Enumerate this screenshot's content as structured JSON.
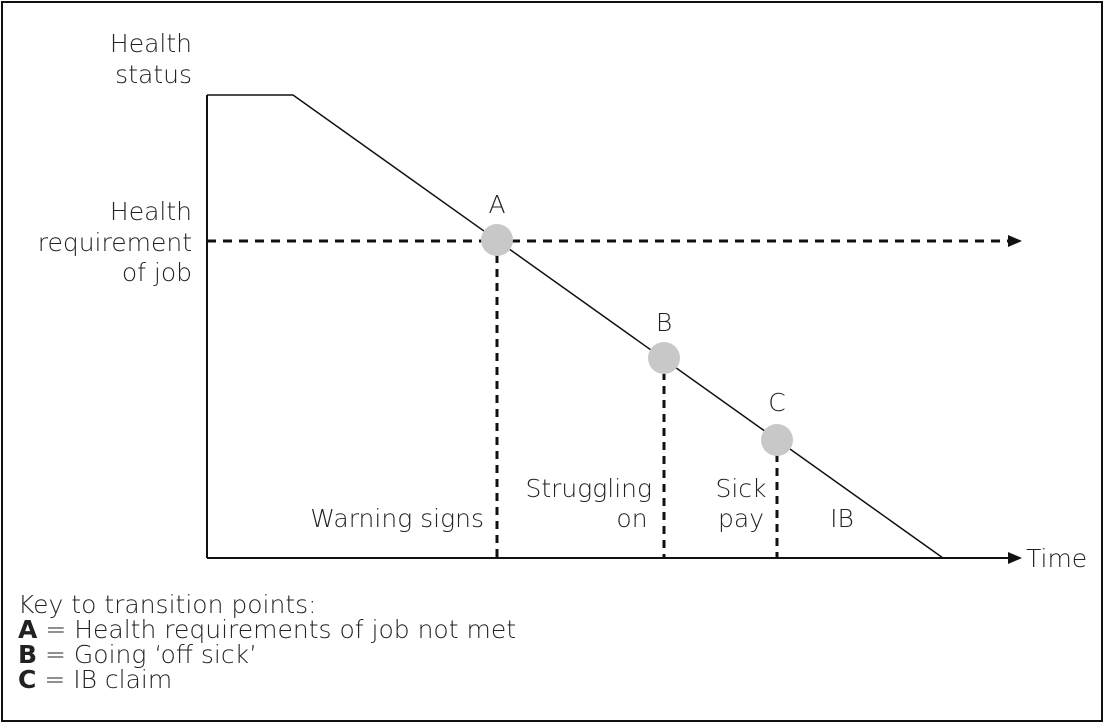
{
  "y_axis_label": [
    "Health",
    "status"
  ],
  "x_axis_label": "Time",
  "threshold_label": [
    "Health",
    "requirement",
    "of job"
  ],
  "points": [
    {
      "label": "A"
    },
    {
      "label": "B"
    },
    {
      "label": "C"
    }
  ],
  "phases": [
    {
      "lines": [
        "Warning signs"
      ]
    },
    {
      "lines": [
        "Struggling",
        "on"
      ]
    },
    {
      "lines": [
        "Sick",
        "pay"
      ]
    },
    {
      "lines": [
        "IB"
      ]
    }
  ],
  "key": {
    "title": "Key to transition points:",
    "items": [
      {
        "letter": "A",
        "text": "= Health requirements of job not met"
      },
      {
        "letter": "B",
        "text": "= Going ‘off sick’"
      },
      {
        "letter": "C",
        "text": "= IB claim"
      }
    ]
  }
}
